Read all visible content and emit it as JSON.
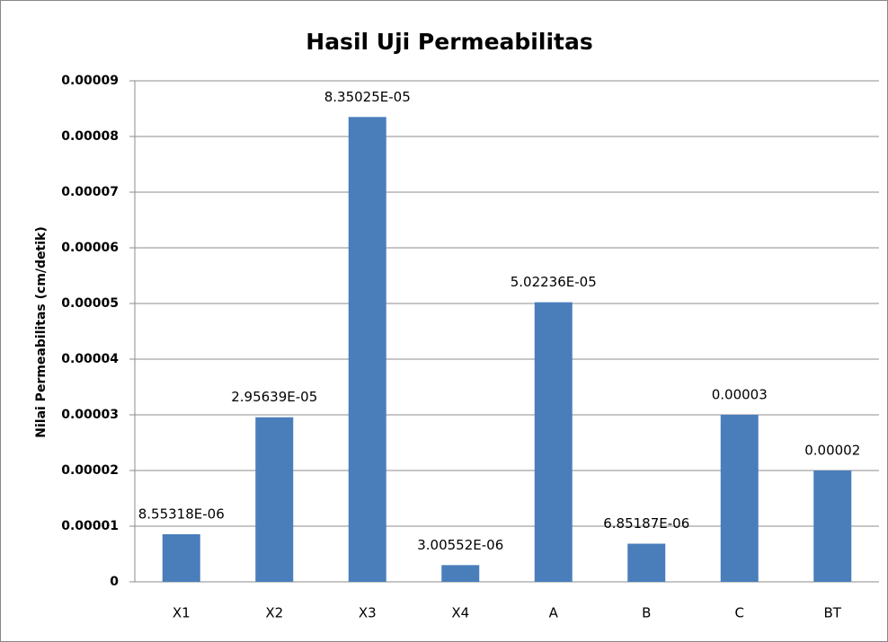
{
  "chart_data": {
    "type": "bar",
    "title": "Hasil Uji Permeabilitas",
    "y_label": "Nilai Permeabilitas (cm/detik)",
    "categories": [
      "X1",
      "X2",
      "X3",
      "X4",
      "A",
      "B",
      "C",
      "BT"
    ],
    "values": [
      8.55318e-06,
      2.95639e-05,
      8.35025e-05,
      3.00552e-06,
      5.02236e-05,
      6.85187e-06,
      3e-05,
      2e-05
    ],
    "value_labels": [
      "8.55318E-06",
      "2.95639E-05",
      "8.35025E-05",
      "3.00552E-06",
      "5.02236E-05",
      "6.85187E-06",
      "0.00003",
      "0.00002"
    ],
    "color": "#4a7ebb",
    "ylim": [
      0,
      9e-05
    ],
    "yticks": [
      0,
      1e-05,
      2e-05,
      3e-05,
      4e-05,
      5e-05,
      6e-05,
      7e-05,
      8e-05,
      9e-05
    ],
    "grid": true
  }
}
